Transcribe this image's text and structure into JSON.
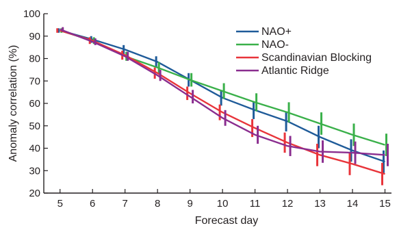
{
  "chart_data": {
    "type": "line",
    "xlabel": "Forecast day",
    "ylabel": "Anomaly correlation (%)",
    "x": [
      5,
      6,
      7,
      8,
      9,
      10,
      11,
      12,
      13,
      14,
      15
    ],
    "xlim": [
      4.5,
      15.2
    ],
    "ylim": [
      20,
      100
    ],
    "yticks": [
      20,
      30,
      40,
      50,
      60,
      70,
      80,
      90,
      100
    ],
    "grid": false,
    "legend_position": "top-right",
    "series": [
      {
        "name": "NAO+",
        "color": "#1f5b99",
        "values": [
          92.5,
          88.5,
          84,
          78.5,
          70.5,
          62.5,
          57,
          52,
          45,
          39,
          34
        ],
        "error": [
          1,
          1.5,
          2,
          2.5,
          3,
          3.5,
          4,
          4.5,
          5,
          5,
          5
        ]
      },
      {
        "name": "NAO-",
        "color": "#3ab04a",
        "values": [
          92.5,
          88,
          81,
          76,
          70.5,
          65.5,
          60.5,
          56,
          51,
          46,
          41.5
        ],
        "error": [
          1,
          1.5,
          2,
          2.5,
          3,
          3.5,
          4,
          4.5,
          5,
          5,
          5
        ]
      },
      {
        "name": "Scandinavian Blocking",
        "color": "#e8343a",
        "values": [
          92.5,
          88,
          81.5,
          73.5,
          64.5,
          56,
          49,
          42.5,
          37,
          33,
          28.5
        ],
        "error": [
          1,
          1.5,
          2,
          2.5,
          3,
          3.5,
          4,
          4.5,
          5,
          5,
          5
        ]
      },
      {
        "name": "Atlantic Ridge",
        "color": "#8a2d8f",
        "values": [
          93,
          87.5,
          81,
          72.5,
          63,
          53.5,
          46,
          41,
          38.5,
          38,
          37
        ],
        "error": [
          1,
          1.5,
          2,
          2.5,
          3,
          3.5,
          4,
          4.5,
          5,
          5,
          5
        ]
      }
    ]
  }
}
